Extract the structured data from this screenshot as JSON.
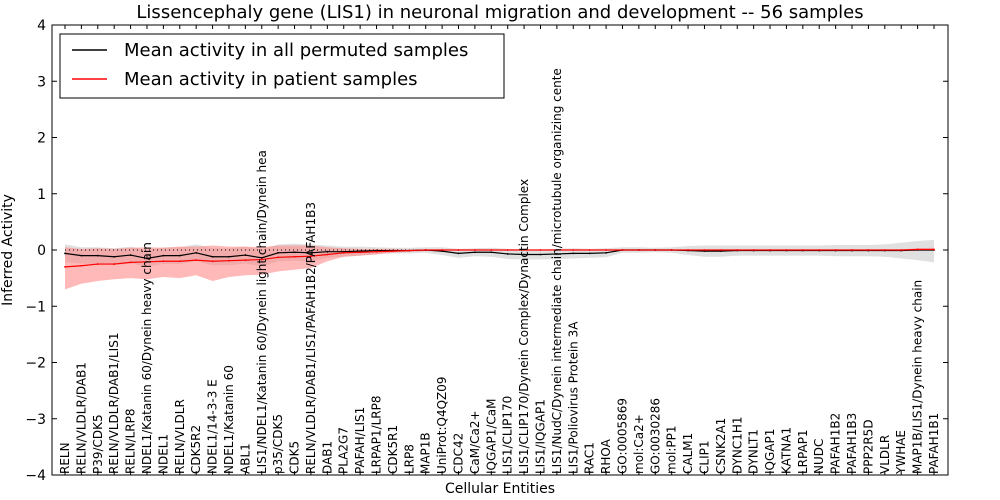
{
  "chart_data": {
    "type": "line",
    "title": "Lissencephaly gene (LIS1) in neuronal migration and development -- 56 samples",
    "xlabel": "Cellular Entities",
    "ylabel": "Inferred Activity",
    "ylim": [
      -4,
      4
    ],
    "yticks": [
      -4,
      -3,
      -2,
      -1,
      0,
      1,
      2,
      3,
      4
    ],
    "ytick_labels": [
      "−4",
      "−3",
      "−2",
      "−1",
      "0",
      "1",
      "2",
      "3",
      "4"
    ],
    "legend_position": "top-left",
    "categories": [
      "RELN",
      "RELN/VLDLR/DAB1",
      "P39/CDK5",
      "RELN/VLDLR/DAB1/LIS1",
      "RELN/LRP8",
      "NDEL1/Katanin 60/Dynein heavy chain",
      "NDEL1",
      "RELN/VLDLR",
      "CDK5R2",
      "NDEL1/14-3-3 E",
      "NDEL1/Katanin 60",
      "ABL1",
      "LIS1/NDEL1/Katanin 60/Dynein light chain/Dynein hea",
      "p35/CDK5",
      "CDK5",
      "RELN/VLDLR/DAB1/LIS1/PAFAH1B2/PAFAH1B3",
      "DAB1",
      "PLA2G7",
      "PAFAH/LIS1",
      "LRPAP1/LRP8",
      "CDK5R1",
      "LRP8",
      "MAP1B",
      "UniProt:Q4QZ09",
      "CDC42",
      "CaM/Ca2+",
      "IQGAP1/CaM",
      "LIS1/CLIP170",
      "LIS1/CLIP170/Dynein Complex/Dynactin Complex",
      "LIS1/IQGAP1",
      "LIS1/NudC/Dynein intermediate chain/microtubule organizing cente",
      "LIS1/Poliovirus Protein 3A",
      "RAC1",
      "RHOA",
      "GO:0005869",
      "mol:Ca2+",
      "GO:0030286",
      "mol:PP1",
      "CALM1",
      "CLIP1",
      "CSNK2A1",
      "DYNC1H1",
      "DYNLT1",
      "IQGAP1",
      "KATNA1",
      "LRPAP1",
      "NUDC",
      "PAFAH1B2",
      "PAFAH1B3",
      "PPP2R5D",
      "VLDLR",
      "YWHAE",
      "MAP1B/LIS1/Dynein heavy chain",
      "PAFAH1B1"
    ],
    "series": [
      {
        "name": "Mean activity in all permuted samples",
        "color": "#000000",
        "band_color": "#bbbbbb",
        "values": [
          -0.06,
          -0.1,
          -0.1,
          -0.12,
          -0.09,
          -0.15,
          -0.1,
          -0.1,
          -0.05,
          -0.12,
          -0.12,
          -0.09,
          -0.14,
          -0.05,
          -0.04,
          -0.05,
          -0.03,
          -0.03,
          -0.02,
          -0.01,
          -0.01,
          -0.01,
          0.0,
          -0.02,
          -0.06,
          -0.04,
          -0.04,
          -0.07,
          -0.08,
          -0.08,
          -0.07,
          -0.06,
          -0.06,
          -0.05,
          0.0,
          0.0,
          0.0,
          0.0,
          -0.01,
          -0.02,
          -0.02,
          -0.01,
          -0.01,
          -0.01,
          -0.01,
          -0.01,
          -0.01,
          -0.01,
          -0.01,
          -0.01,
          -0.01,
          -0.01,
          0.0,
          0.0
        ],
        "lower": [
          -0.22,
          -0.24,
          -0.25,
          -0.27,
          -0.24,
          -0.3,
          -0.25,
          -0.25,
          -0.2,
          -0.27,
          -0.27,
          -0.24,
          -0.29,
          -0.2,
          -0.19,
          -0.2,
          -0.14,
          -0.12,
          -0.1,
          -0.07,
          -0.06,
          -0.06,
          -0.05,
          -0.09,
          -0.14,
          -0.11,
          -0.12,
          -0.16,
          -0.17,
          -0.17,
          -0.16,
          -0.15,
          -0.14,
          -0.13,
          -0.05,
          -0.05,
          -0.04,
          -0.05,
          -0.09,
          -0.12,
          -0.12,
          -0.1,
          -0.1,
          -0.1,
          -0.1,
          -0.1,
          -0.1,
          -0.11,
          -0.11,
          -0.11,
          -0.12,
          -0.15,
          -0.18,
          -0.22
        ],
        "upper": [
          0.1,
          0.05,
          0.05,
          0.03,
          0.06,
          0.0,
          0.05,
          0.05,
          0.1,
          0.03,
          0.03,
          0.06,
          0.01,
          0.1,
          0.11,
          0.1,
          0.08,
          0.06,
          0.06,
          0.05,
          0.04,
          0.04,
          0.05,
          0.05,
          0.02,
          0.03,
          0.04,
          0.02,
          0.01,
          0.01,
          0.02,
          0.03,
          0.02,
          0.03,
          0.05,
          0.05,
          0.04,
          0.05,
          0.07,
          0.08,
          0.08,
          0.08,
          0.08,
          0.08,
          0.08,
          0.08,
          0.08,
          0.09,
          0.09,
          0.09,
          0.1,
          0.13,
          0.16,
          0.18
        ]
      },
      {
        "name": "Mean activity in patient samples",
        "color": "#ff0000",
        "band_color": "#ff7f7f",
        "values": [
          -0.3,
          -0.28,
          -0.25,
          -0.25,
          -0.22,
          -0.21,
          -0.2,
          -0.2,
          -0.18,
          -0.2,
          -0.19,
          -0.18,
          -0.17,
          -0.13,
          -0.12,
          -0.11,
          -0.08,
          -0.05,
          -0.04,
          -0.03,
          -0.02,
          -0.01,
          0.0,
          0.0,
          0.0,
          0.0,
          0.0,
          0.0,
          0.0,
          0.0,
          0.0,
          0.0,
          0.0,
          0.0,
          0.0,
          0.0,
          0.0,
          0.0,
          0.0,
          0.0,
          0.0,
          0.0,
          0.0,
          0.0,
          0.0,
          0.0,
          0.0,
          0.0,
          0.0,
          0.0,
          0.0,
          0.0,
          0.01,
          0.01
        ],
        "lower": [
          -0.7,
          -0.6,
          -0.55,
          -0.52,
          -0.5,
          -0.52,
          -0.48,
          -0.5,
          -0.45,
          -0.55,
          -0.48,
          -0.45,
          -0.44,
          -0.38,
          -0.35,
          -0.32,
          -0.2,
          -0.12,
          -0.1,
          -0.08,
          -0.05,
          -0.03,
          -0.02,
          -0.01,
          -0.01,
          -0.01,
          -0.01,
          -0.01,
          -0.01,
          -0.01,
          -0.01,
          -0.01,
          -0.01,
          -0.01,
          -0.01,
          -0.01,
          -0.01,
          -0.01,
          -0.01,
          -0.01,
          -0.01,
          -0.01,
          -0.01,
          -0.01,
          -0.01,
          -0.01,
          -0.01,
          -0.01,
          -0.01,
          -0.01,
          -0.01,
          -0.01,
          -0.01,
          -0.01
        ],
        "upper": [
          0.05,
          0.02,
          0.03,
          0.02,
          0.04,
          0.05,
          0.04,
          0.06,
          0.06,
          0.08,
          0.06,
          0.06,
          0.05,
          0.08,
          0.08,
          0.08,
          0.05,
          0.03,
          0.02,
          0.02,
          0.02,
          0.01,
          0.01,
          0.01,
          0.01,
          0.01,
          0.01,
          0.01,
          0.01,
          0.01,
          0.01,
          0.01,
          0.01,
          0.01,
          0.01,
          0.01,
          0.01,
          0.01,
          0.01,
          0.01,
          0.01,
          0.01,
          0.01,
          0.01,
          0.01,
          0.01,
          0.01,
          0.01,
          0.01,
          0.01,
          0.01,
          0.01,
          0.03,
          0.04
        ]
      }
    ],
    "reference_line": {
      "y": 0,
      "style": "dotted",
      "color": "#000000"
    }
  }
}
